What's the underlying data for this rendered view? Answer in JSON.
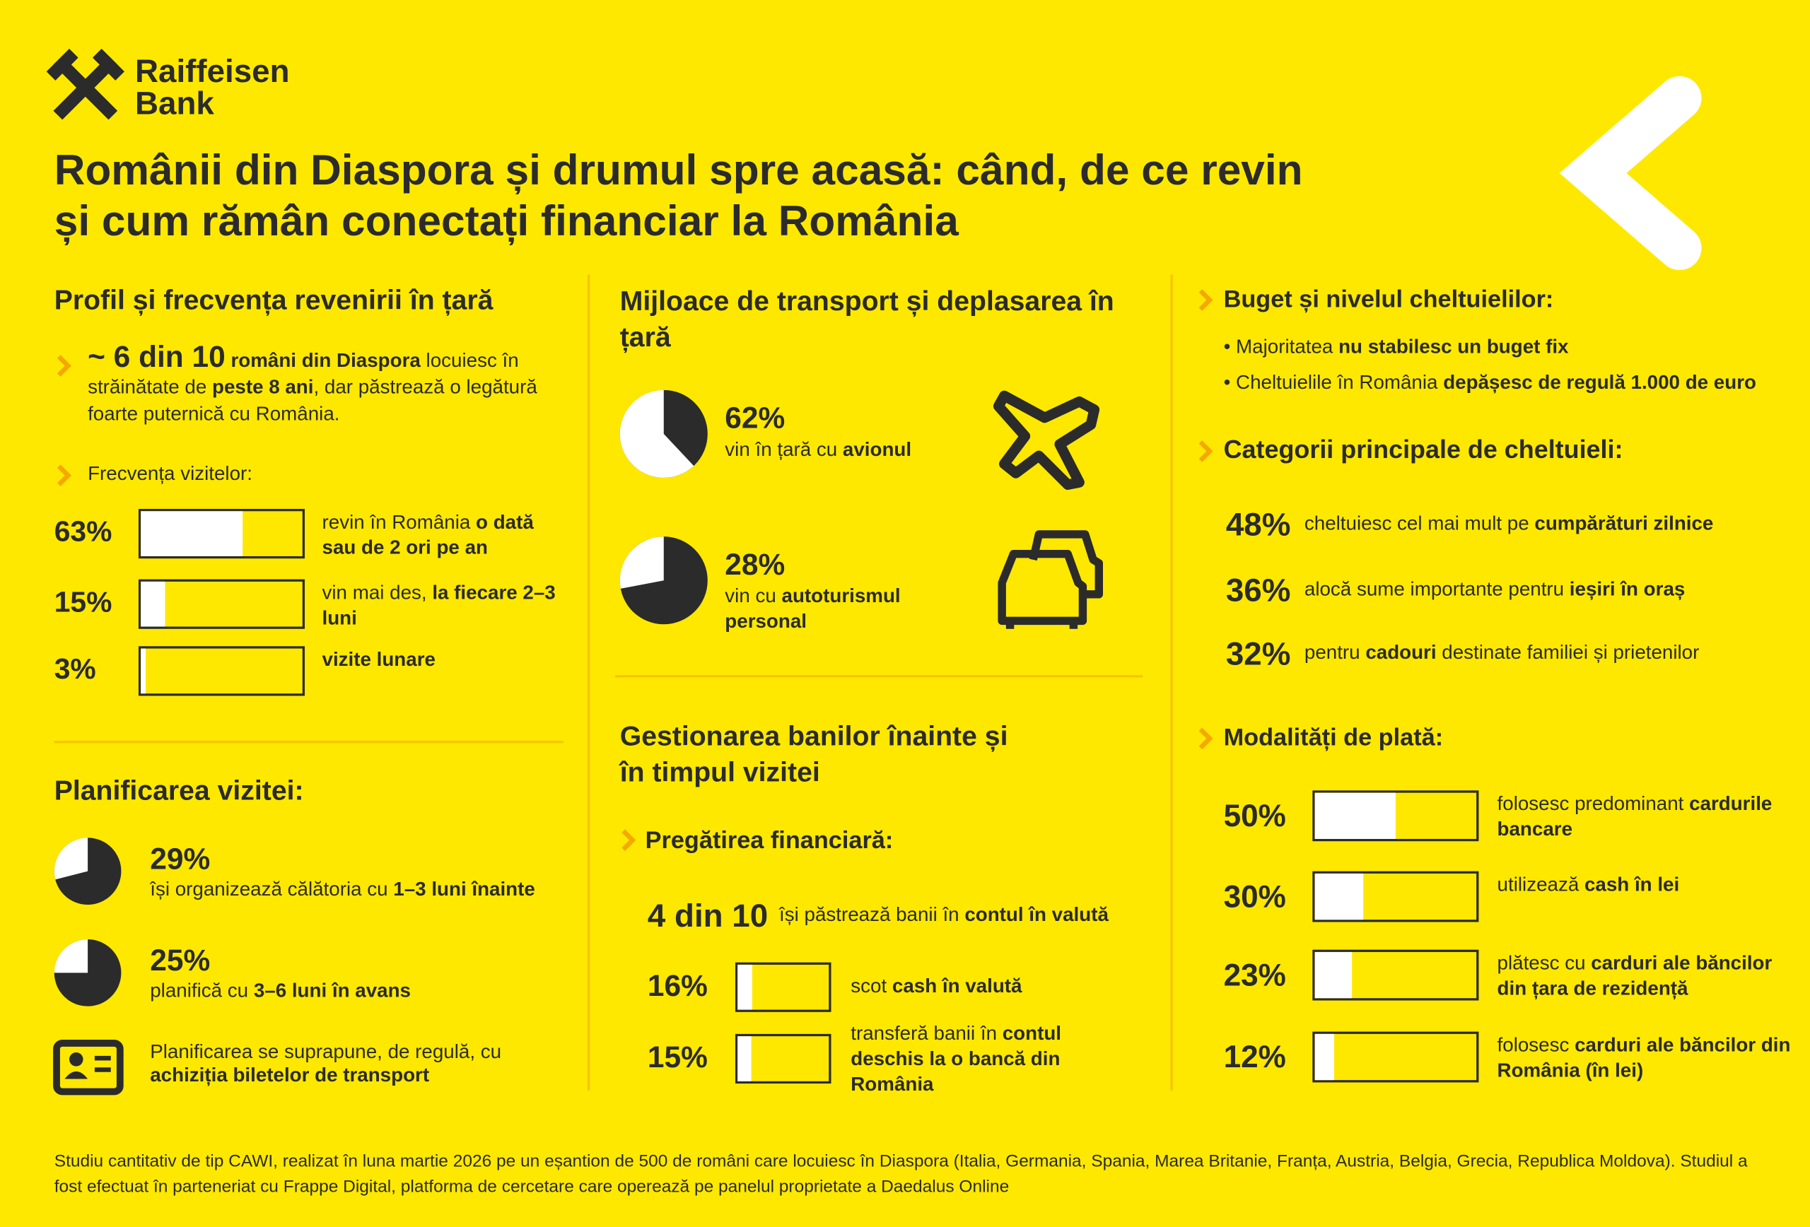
{
  "logo": [
    "Raiffeisen",
    "Bank"
  ],
  "title": [
    "Românii din Diaspora și drumul spre acasă: când, de ce revin",
    "și cum rămân conectați financiar la România"
  ],
  "profile": {
    "heading": "Profil și frecvența revenirii în țară",
    "intro_figure": "~ 6 din 10",
    "intro": [
      {
        "text": "români din Diaspora",
        "bold": true
      },
      " locuiesc în străinătate de ",
      {
        "text": "peste 8 ani",
        "bold": true
      },
      ", dar păstrează o legătură foarte puternică cu România."
    ],
    "freq_label": "Frecvența vizitelor:",
    "bars": [
      {
        "value": 63,
        "label": "63%",
        "text": [
          "revin în România ",
          {
            "text": "o dată sau de 2 ori pe an",
            "bold": true
          }
        ]
      },
      {
        "value": 15,
        "label": "15%",
        "text": [
          "vin mai des, ",
          {
            "text": "la fiecare 2–3 luni",
            "bold": true
          }
        ]
      },
      {
        "value": 3,
        "label": "3%",
        "text": [
          {
            "text": "vizite lunare",
            "bold": true
          }
        ]
      }
    ]
  },
  "planning": {
    "heading": "Planificarea vizitei:",
    "items": [
      {
        "value": 29,
        "label": "29%",
        "text": [
          "își organizează călătoria cu ",
          {
            "text": "1–3 luni înainte",
            "bold": true
          }
        ]
      },
      {
        "value": 25,
        "label": "25%",
        "text": [
          "planifică cu ",
          {
            "text": "3–6 luni în avans",
            "bold": true
          }
        ]
      }
    ],
    "note": [
      "Planificarea se suprapune, de regulă, cu ",
      {
        "text": "achiziția biletelor de transport",
        "bold": true
      }
    ]
  },
  "transport": {
    "heading": "Mijloace de transport și deplasarea în țară",
    "items": [
      {
        "value": 62,
        "label": "62%",
        "text": [
          "vin în țară cu ",
          {
            "text": "avionul",
            "bold": true
          }
        ]
      },
      {
        "value": 28,
        "label": "28%",
        "text": [
          "vin cu ",
          {
            "text": "autoturismul personal",
            "bold": true
          }
        ]
      }
    ]
  },
  "money": {
    "heading": "Gestionarea banilor înainte și în timpul vizitei",
    "sub": "Pregătirea financiară:",
    "stat_figure": "4 din 10",
    "stat_text": [
      "își păstrează banii în ",
      {
        "text": "contul în valută",
        "bold": true
      }
    ],
    "bars": [
      {
        "value": 16,
        "label": "16%",
        "text": [
          "scot ",
          {
            "text": "cash în valută",
            "bold": true
          }
        ]
      },
      {
        "value": 15,
        "label": "15%",
        "text": [
          "transferă banii în ",
          {
            "text": "contul deschis la o bancă din România",
            "bold": true
          }
        ]
      }
    ]
  },
  "budget": {
    "heading": "Buget și nivelul cheltuielilor:",
    "bullets": [
      [
        "Majoritatea ",
        {
          "text": "nu stabilesc un buget fix",
          "bold": true
        }
      ],
      [
        "Cheltuielile în România ",
        {
          "text": "depășesc de regulă 1.000 de euro",
          "bold": true
        }
      ]
    ]
  },
  "categories": {
    "heading": "Categorii principale de cheltuieli:",
    "items": [
      {
        "label": "48%",
        "text": [
          "cheltuiesc cel mai mult pe ",
          {
            "text": "cumpărături zilnice",
            "bold": true
          }
        ]
      },
      {
        "label": "36%",
        "text": [
          "alocă sume importante pentru ",
          {
            "text": "ieșiri în oraș",
            "bold": true
          }
        ]
      },
      {
        "label": "32%",
        "text": [
          "pentru ",
          {
            "text": "cadouri",
            "bold": true
          },
          " destinate familiei și prietenilor"
        ]
      }
    ]
  },
  "payment": {
    "heading": "Modalități de plată:",
    "bars": [
      {
        "value": 50,
        "label": "50%",
        "text": [
          "folosesc predominant ",
          {
            "text": "cardurile bancare",
            "bold": true
          }
        ]
      },
      {
        "value": 30,
        "label": "30%",
        "text": [
          "utilizează ",
          {
            "text": "cash în lei",
            "bold": true
          }
        ]
      },
      {
        "value": 23,
        "label": "23%",
        "text": [
          "plătesc cu ",
          {
            "text": "carduri ale băncilor din țara de rezidență",
            "bold": true
          }
        ]
      },
      {
        "value": 12,
        "label": "12%",
        "text": [
          "folosesc ",
          {
            "text": "carduri ale băncilor din România (în lei)",
            "bold": true
          }
        ]
      }
    ]
  },
  "footer": "Studiu cantitativ de tip CAWI, realizat în luna martie 2026 pe un eșantion de 500 de români care locuiesc în Diaspora (Italia, Germania, Spania, Marea Britanie, Franța, Austria, Belgia, Grecia, Republica Moldova). Studiul a fost efectuat în parteneriat cu Frappe Digital, platforma de cercetare care operează pe panelul proprietate a Daedalus Online"
}
